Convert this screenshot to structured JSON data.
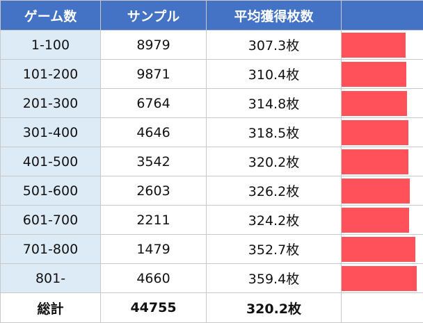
{
  "headers": {
    "game": "ゲーム数",
    "sample": "サンプル",
    "avg": "平均獲得枚数",
    "bar": ""
  },
  "colors": {
    "header_bg": "#4472c4",
    "game_col_bg": "#ddebf7",
    "bar": "#ff515a"
  },
  "chart_data": {
    "type": "table",
    "columns": [
      "ゲーム数",
      "サンプル",
      "平均獲得枚数"
    ],
    "unit": "枚",
    "bar_range": [
      0,
      360
    ],
    "rows": [
      {
        "game": "1-100",
        "sample": "8979",
        "avg_text": "307.3枚",
        "avg": 307.3
      },
      {
        "game": "101-200",
        "sample": "9871",
        "avg_text": "310.4枚",
        "avg": 310.4
      },
      {
        "game": "201-300",
        "sample": "6764",
        "avg_text": "314.8枚",
        "avg": 314.8
      },
      {
        "game": "301-400",
        "sample": "4646",
        "avg_text": "318.5枚",
        "avg": 318.5
      },
      {
        "game": "401-500",
        "sample": "3542",
        "avg_text": "320.2枚",
        "avg": 320.2
      },
      {
        "game": "501-600",
        "sample": "2603",
        "avg_text": "326.2枚",
        "avg": 326.2
      },
      {
        "game": "601-700",
        "sample": "2211",
        "avg_text": "324.2枚",
        "avg": 324.2
      },
      {
        "game": "701-800",
        "sample": "1479",
        "avg_text": "352.7枚",
        "avg": 352.7
      },
      {
        "game": "801-",
        "sample": "4660",
        "avg_text": "359.4枚",
        "avg": 359.4
      }
    ],
    "total": {
      "label": "総計",
      "sample": "44755",
      "avg_text": "320.2枚"
    }
  }
}
